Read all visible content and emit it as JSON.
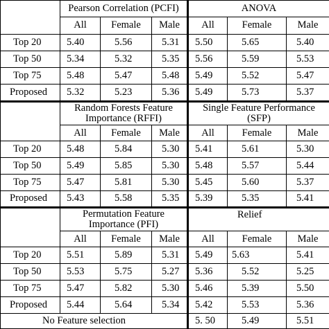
{
  "sections": [
    {
      "groups": [
        "Pearson Correlation (PCFI)",
        "ANOVA"
      ],
      "sub_headers": [
        "All",
        "Female",
        "Male",
        "All",
        "Female",
        "Male"
      ],
      "rows": [
        {
          "label": "Top 20",
          "values": [
            "5.40",
            "5.56",
            "5.31",
            "5.50",
            "5.65",
            "5.40"
          ]
        },
        {
          "label": "Top 50",
          "values": [
            "5.34",
            "5.32",
            "5.35",
            "5.56",
            "5.59",
            "5.53"
          ]
        },
        {
          "label": "Top 75",
          "values": [
            "5.48",
            "5.47",
            "5.48",
            "5.49",
            "5.52",
            "5.47"
          ]
        },
        {
          "label": "Proposed",
          "values": [
            "5.32",
            "5.23",
            "5.36",
            "5.49",
            "5.73",
            "5.37"
          ]
        }
      ]
    },
    {
      "groups": [
        "Random Forests Feature Importance (RFFI)",
        "Single Feature Performance (SFP)"
      ],
      "sub_headers": [
        "All",
        "Female",
        "Male",
        "All",
        "Female",
        "Male"
      ],
      "rows": [
        {
          "label": "Top 20",
          "values": [
            "5.48",
            "5.84",
            "5.30",
            "5.41",
            "5.61",
            "5.30"
          ]
        },
        {
          "label": "Top 50",
          "values": [
            "5.49",
            "5.85",
            "5.30",
            "5.48",
            "5.57",
            "5.44"
          ]
        },
        {
          "label": "Top 75",
          "values": [
            "5.47",
            "5.81",
            "5.30",
            "5.45",
            "5.60",
            "5.37"
          ]
        },
        {
          "label": "Proposed",
          "values": [
            "5.43",
            "5.58",
            "5.35",
            "5.39",
            "5.35",
            "5.41"
          ]
        }
      ]
    },
    {
      "groups": [
        "Permutation Feature Importance (PFI)",
        "Relief"
      ],
      "sub_headers": [
        "All",
        "Female",
        "Male",
        "All",
        "Female",
        "Male"
      ],
      "rows": [
        {
          "label": "Top 20",
          "values": [
            "5.51",
            "5.89",
            "5.31",
            "5.49",
            "5.63",
            "5.41"
          ]
        },
        {
          "label": "Top 50",
          "values": [
            "5.53",
            "5.75",
            "5.27",
            "5.36",
            "5.52",
            "5.25"
          ]
        },
        {
          "label": "Top 75",
          "values": [
            "5.47",
            "5.82",
            "5.30",
            "5.46",
            "5.39",
            "5.50"
          ]
        },
        {
          "label": "Proposed",
          "values": [
            "5.44",
            "5.64",
            "5.34",
            "5.42",
            "5.53",
            "5.36"
          ]
        }
      ]
    }
  ],
  "footer": {
    "label": "No Feature selection",
    "values": [
      "5. 50",
      "5.49",
      "5.51"
    ]
  }
}
